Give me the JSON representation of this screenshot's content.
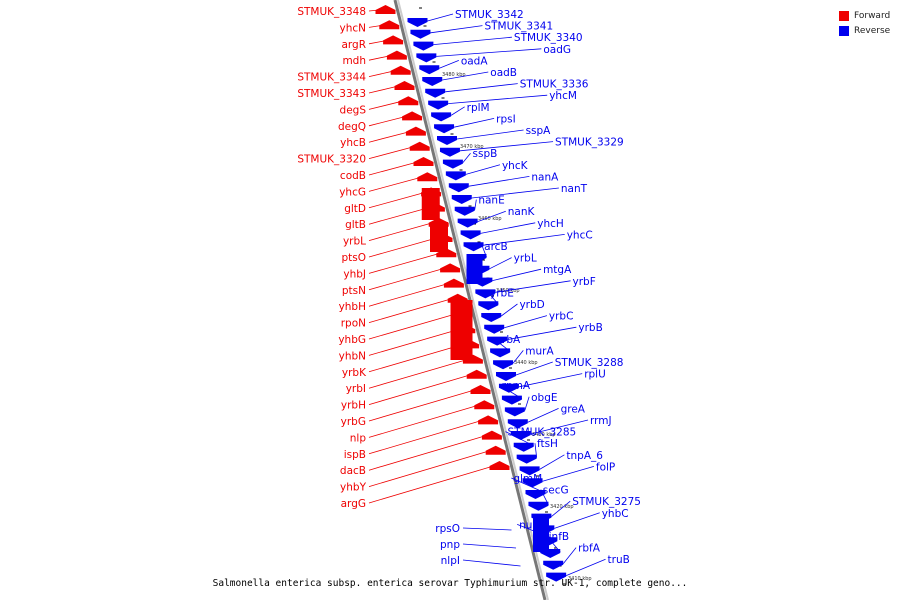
{
  "caption": "Salmonella enterica subsp. enterica serovar Typhimurium str. UK-1, complete geno...",
  "legend": [
    {
      "label": "Forward",
      "color": "#ee0000"
    },
    {
      "label": "Reverse",
      "color": "#0000ee"
    }
  ],
  "colors": {
    "forward": "#ee0000",
    "reverse": "#0000ee",
    "backbone": "#888888"
  },
  "ruler_labels": [
    "3480 kbp",
    "3470 kbp",
    "3460 kbp",
    "3450 kbp",
    "3440 kbp",
    "3430 kbp",
    "3420 kbp",
    "3410 kbp"
  ],
  "forward_genes": [
    "STMUK_3348",
    "yhcN",
    "argR",
    "mdh",
    "STMUK_3344",
    "STMUK_3343",
    "degS",
    "degQ",
    "yhcB",
    "STMUK_3320",
    "codB",
    "yhcG",
    "gltD",
    "gltB",
    "yrbL",
    "ptsO",
    "yhbJ",
    "ptsN",
    "yhbH",
    "rpoN",
    "yhbG",
    "yhbN",
    "yrbK",
    "yrbI",
    "yrbH",
    "yrbG",
    "nlp",
    "ispB",
    "dacB",
    "yhbY",
    "argG"
  ],
  "reverse_genes_left": [
    "rpsO",
    "pnp",
    "nlpI"
  ],
  "reverse_genes": [
    "STMUK_3342",
    "STMUK_3341",
    "STMUK_3340",
    "oadG",
    "oadA",
    "oadB",
    "STMUK_3336",
    "yhcM",
    "rplM",
    "rpsI",
    "sspA",
    "STMUK_3329",
    "sspB",
    "yhcK",
    "nanA",
    "nanT",
    "nanE",
    "nanK",
    "yhcH",
    "yhcC",
    "arcB",
    "yrbL",
    "mtgA",
    "yrbF",
    "yrbE",
    "yrbD",
    "yrbC",
    "yrbB",
    "yrbA",
    "murA",
    "STMUK_3288",
    "rplU",
    "rpmA",
    "obgE",
    "greA",
    "rrmJ",
    "STMUK_3285",
    "ftsH",
    "tnpA_6",
    "folP",
    "glmM",
    "secG",
    "STMUK_3275",
    "yhbC",
    "nusA",
    "infB",
    "rbfA",
    "truB"
  ]
}
